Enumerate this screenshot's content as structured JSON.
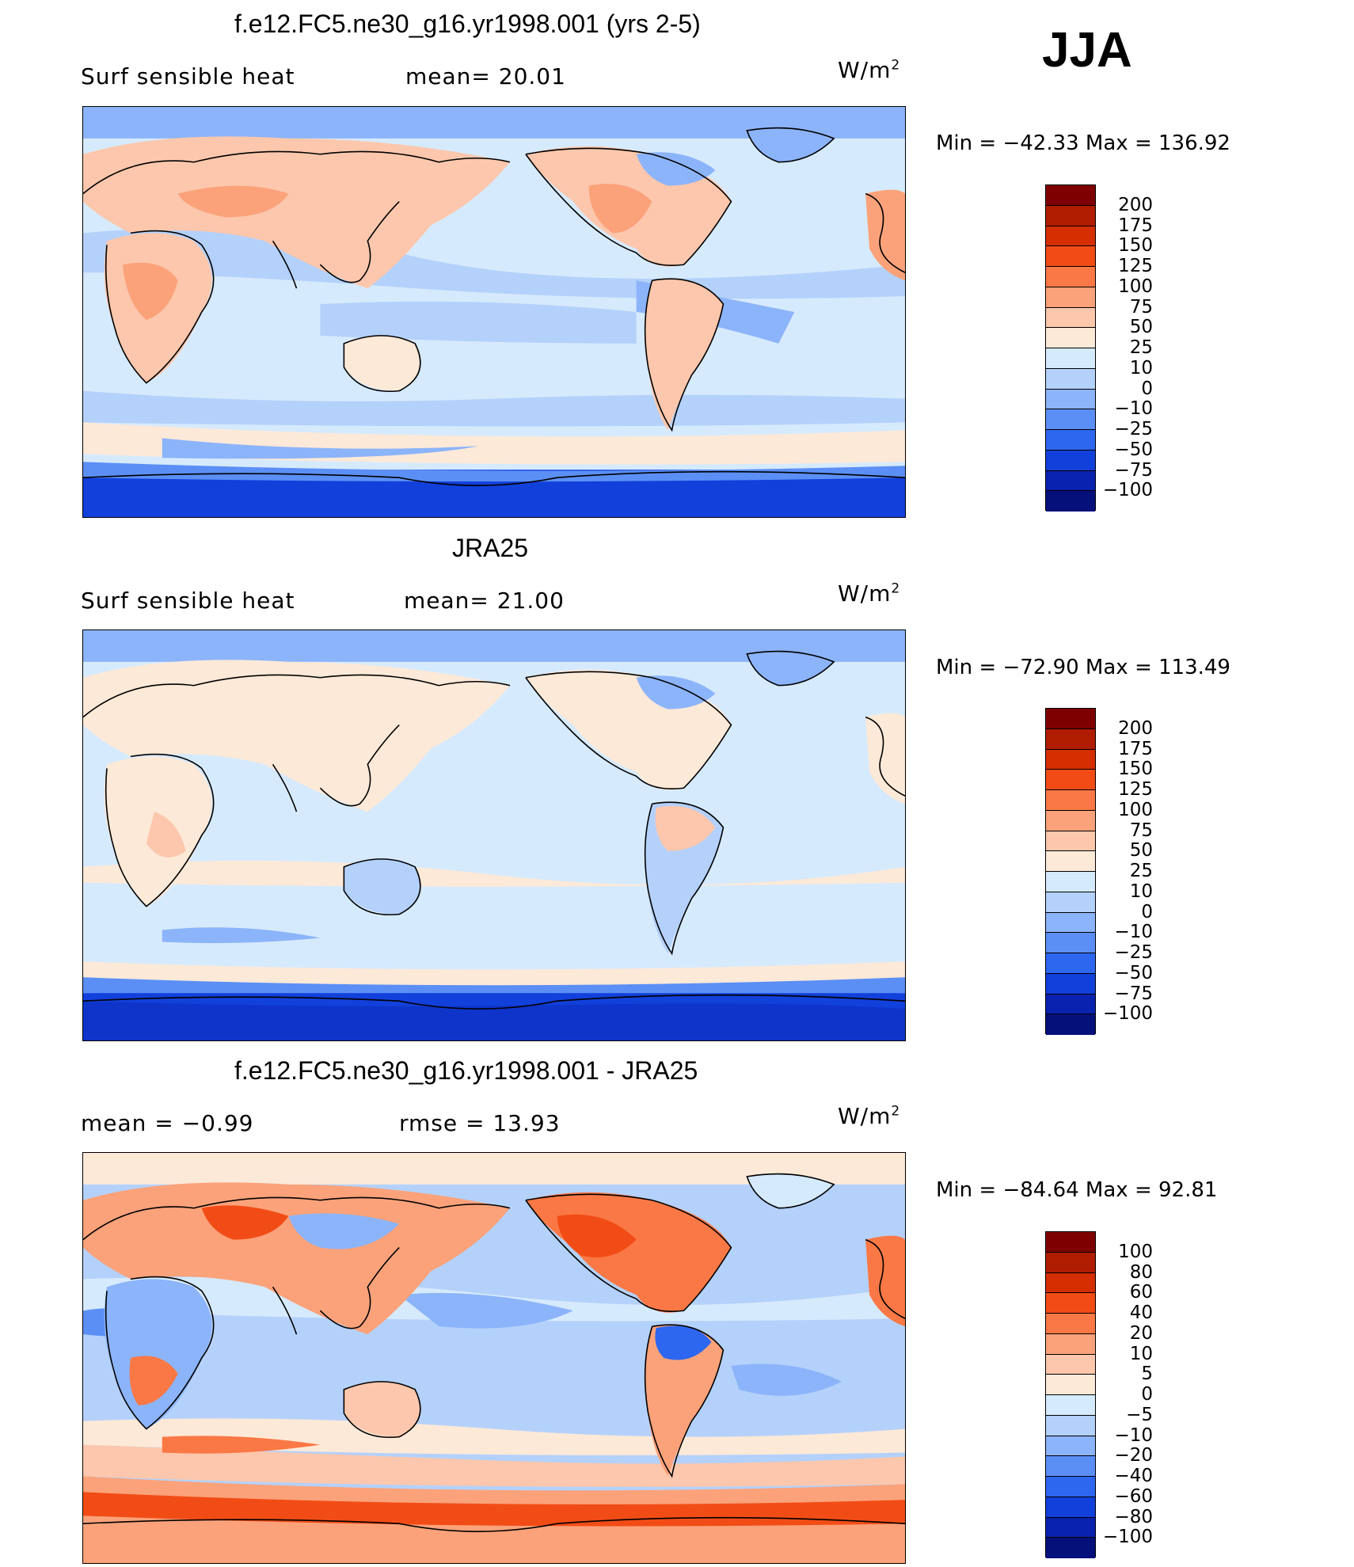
{
  "season": "JJA",
  "units": "W/m",
  "units_exp": "2",
  "panels": [
    {
      "title": "f.e12.FC5.ne30_g16.yr1998.001 (yrs 2-5)",
      "left_label": "Surf  sensible  heat",
      "mid_label": "mean=   20.01",
      "min_label": "Min  =  −42.33  Max  =  136.92",
      "colorbar_labels": [
        "200",
        "175",
        "150",
        "125",
        "100",
        "75",
        "50",
        "25",
        "10",
        "0",
        "−10",
        "−25",
        "−50",
        "−75",
        "−100"
      ],
      "colorbar_colors": [
        "#7f0000",
        "#b01c00",
        "#d52e00",
        "#f24c16",
        "#fa7845",
        "#fba27a",
        "#fcc7ac",
        "#fde9d8",
        "#d6eafd",
        "#b4d1fb",
        "#8cb4fa",
        "#5c8ff5",
        "#2d66ef",
        "#1240db",
        "#0a22b0",
        "#06107a"
      ]
    },
    {
      "title": "JRA25",
      "left_label": "Surf  sensible  heat",
      "mid_label": "mean=   21.00",
      "min_label": "Min  =  −72.90  Max  =  113.49",
      "colorbar_labels": [
        "200",
        "175",
        "150",
        "125",
        "100",
        "75",
        "50",
        "25",
        "10",
        "0",
        "−10",
        "−25",
        "−50",
        "−75",
        "−100"
      ],
      "colorbar_colors": [
        "#7f0000",
        "#b01c00",
        "#d52e00",
        "#f24c16",
        "#fa7845",
        "#fba27a",
        "#fcc7ac",
        "#fde9d8",
        "#d6eafd",
        "#b4d1fb",
        "#8cb4fa",
        "#5c8ff5",
        "#2d66ef",
        "#1240db",
        "#0a22b0",
        "#06107a"
      ]
    },
    {
      "title": "f.e12.FC5.ne30_g16.yr1998.001 - JRA25",
      "left_label": "mean  =    −0.99",
      "mid_label": "rmse  =    13.93",
      "min_label": "Min  =  −84.64  Max  =   92.81",
      "colorbar_labels": [
        "100",
        "80",
        "60",
        "40",
        "20",
        "10",
        "5",
        "0",
        "−5",
        "−10",
        "−20",
        "−40",
        "−60",
        "−80",
        "−100"
      ],
      "colorbar_colors": [
        "#7f0000",
        "#b01c00",
        "#d52e00",
        "#f24c16",
        "#fa7845",
        "#fba27a",
        "#fcc7ac",
        "#fde9d8",
        "#d6eafd",
        "#b4d1fb",
        "#8cb4fa",
        "#5c8ff5",
        "#2d66ef",
        "#1240db",
        "#0a22b0",
        "#06107a"
      ]
    }
  ]
}
